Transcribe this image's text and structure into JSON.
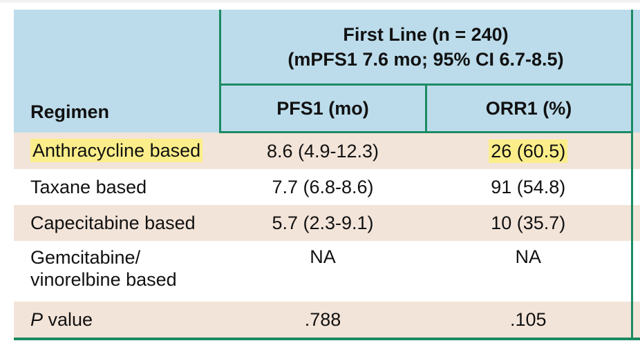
{
  "table": {
    "group_header": {
      "line1": "First Line (n = 240)",
      "line2": "(mPFS1 7.6 mo; 95% CI 6.7-8.5)"
    },
    "columns": {
      "regimen": "Regimen",
      "pfs": "PFS1 (mo)",
      "orr": "ORR1 (%)"
    },
    "rows": [
      {
        "regimen": "Anthracycline based",
        "pfs": "8.6 (4.9-12.3)",
        "orr": "26 (60.5)"
      },
      {
        "regimen": "Taxane based",
        "pfs": "7.7 (6.8-8.6)",
        "orr": "91 (54.8)"
      },
      {
        "regimen": "Capecitabine based",
        "pfs": "5.7 (2.3-9.1)",
        "orr": "10 (35.7)"
      },
      {
        "regimen_line1": "Gemcitabine/",
        "regimen_line2": "vinorelbine based",
        "pfs": "NA",
        "orr": "NA"
      },
      {
        "regimen_italic": "P",
        "regimen_rest": " value",
        "pfs": ".788",
        "orr": ".105"
      }
    ]
  },
  "colors": {
    "header_bg": "#bcdceb",
    "row_shade": "#f3e4d9",
    "rule": "#1c8a63",
    "highlight": "#fbee8a"
  }
}
